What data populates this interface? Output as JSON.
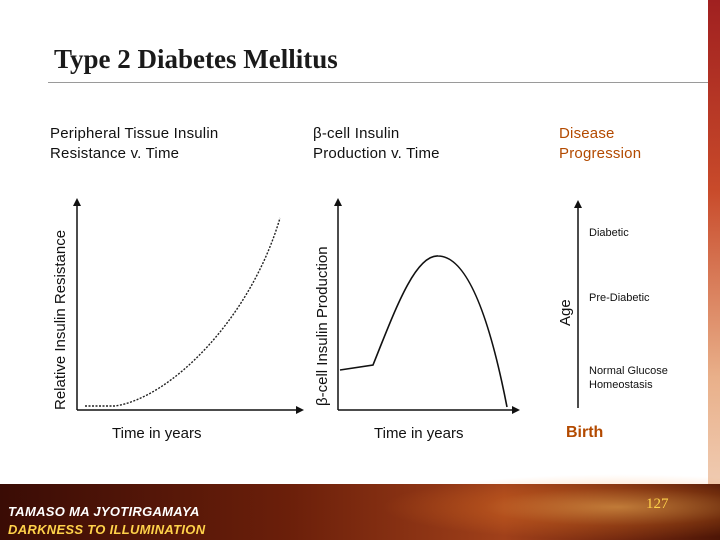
{
  "slide": {
    "title": "Type 2 Diabetes Mellitus",
    "page_number": "127"
  },
  "panel1": {
    "header_line1": "Peripheral Tissue Insulin",
    "header_line2": "Resistance  v. Time",
    "ylabel": "Relative Insulin Resistance",
    "xlabel": "Time in years"
  },
  "panel2": {
    "header_line1": "β-cell Insulin",
    "header_line2": "Production v. Time",
    "ylabel": "β-cell Insulin Production",
    "xlabel": "Time in years"
  },
  "panel3": {
    "header_line1": "Disease",
    "header_line2": "Progression",
    "ylabel": "Age",
    "stages": {
      "diabetic": "Diabetic",
      "pre_diabetic": "Pre-Diabetic",
      "normal_line1": "Normal Glucose",
      "normal_line2": "Homeostasis"
    },
    "birth": "Birth"
  },
  "footer": {
    "motto_line1": "TAMASO MA JYOTIRGAMAYA",
    "motto_line2": "DARKNESS TO ILLUMINATION"
  },
  "colors": {
    "accent_orange": "#b34a00",
    "footer_gold": "#ffd24a"
  }
}
